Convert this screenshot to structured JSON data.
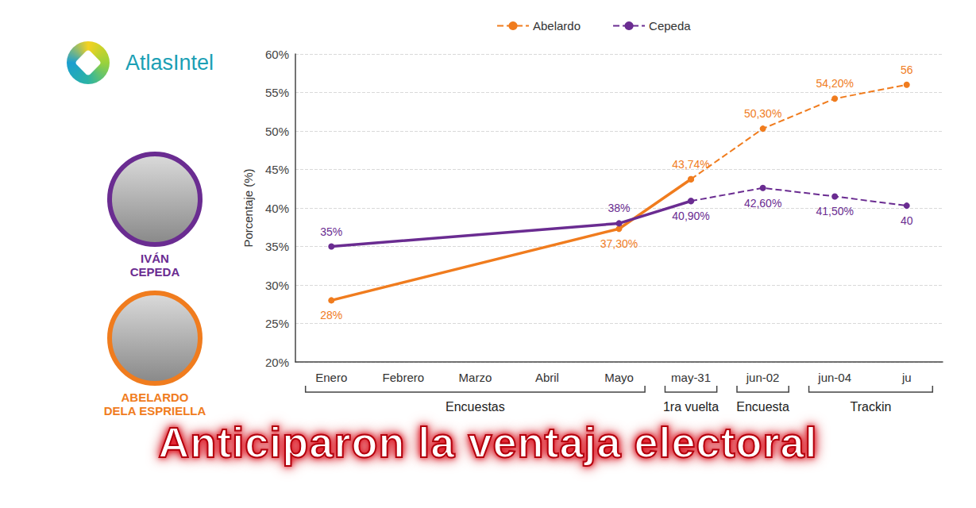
{
  "header": {
    "logo": "AtlasIntel",
    "candidates": [
      {
        "lines": [
          "IVÁN",
          "CEPEDA"
        ],
        "color": "#6a2c91"
      },
      {
        "lines": [
          "ABELARDO",
          "DELA ESPRIELLA"
        ],
        "color": "#f07c1e"
      }
    ]
  },
  "headline": "Anticiparon la ventaja electoral",
  "chart_data": {
    "type": "line",
    "y_label": "Porcentaje (%)",
    "categories": [
      "Enero",
      "Febrero",
      "Marzo",
      "Abril",
      "Mayo",
      "may-31",
      "jun-02",
      "jun-04",
      "ju"
    ],
    "ylim": [
      20,
      60
    ],
    "yticks": [
      {
        "value": 20,
        "label": "20%"
      },
      {
        "value": 25,
        "label": "25%"
      },
      {
        "value": 30,
        "label": "30%"
      },
      {
        "value": 35,
        "label": "35%"
      },
      {
        "value": 40,
        "label": "40%"
      },
      {
        "value": 45,
        "label": "45%"
      },
      {
        "value": 50,
        "label": "50%"
      },
      {
        "value": 55,
        "label": "55%"
      },
      {
        "value": 60,
        "label": "60%"
      }
    ],
    "grid": true,
    "legend": "top",
    "data_labels": true,
    "groups": [
      {
        "label": "Encuestas",
        "from": "Enero",
        "to": "Mayo",
        "line_style": "solid"
      },
      {
        "label": "1ra vuelta",
        "from": "may-31",
        "to": "may-31",
        "line_style": "solid"
      },
      {
        "label": "Encuesta",
        "from": "jun-02",
        "to": "jun-02",
        "line_style": "dashed"
      },
      {
        "label": "Trackin",
        "from": "jun-04",
        "to": "ju",
        "line_style": "dashed"
      }
    ],
    "series": [
      {
        "name": "Abelardo",
        "color": "#f07c1e",
        "marker": "circle",
        "values": [
          28,
          null,
          null,
          null,
          37.3,
          43.74,
          50.3,
          54.2,
          56
        ],
        "value_labels": [
          "28%",
          null,
          null,
          null,
          "37,30%",
          "43,74%",
          "50,30%",
          "54,20%",
          "56"
        ]
      },
      {
        "name": "Cepeda",
        "color": "#6a2c91",
        "marker": "circle",
        "values": [
          35,
          null,
          null,
          null,
          38,
          40.9,
          42.6,
          41.5,
          40.3
        ],
        "value_labels": [
          "35%",
          null,
          null,
          null,
          "38%",
          "40,90%",
          "42,60%",
          "41,50%",
          "40"
        ]
      }
    ]
  }
}
